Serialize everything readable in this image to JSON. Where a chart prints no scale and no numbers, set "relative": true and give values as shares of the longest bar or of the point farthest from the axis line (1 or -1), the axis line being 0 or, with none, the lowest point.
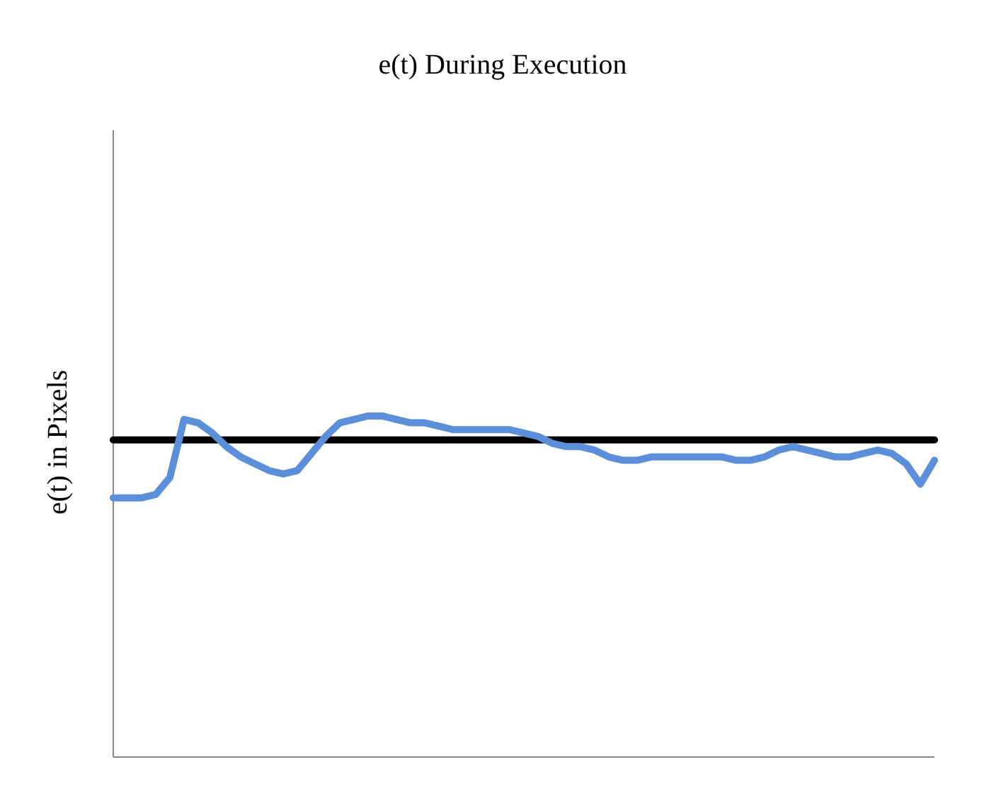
{
  "chart_data": {
    "type": "line",
    "title": "e(t) During Execution",
    "ylabel": "e(t) in Pixels",
    "relative": true,
    "categories": [
      null,
      null,
      null,
      null,
      null,
      null,
      null,
      null,
      null,
      null,
      null,
      null,
      null,
      null,
      null,
      null,
      null,
      null,
      null,
      null,
      null,
      null,
      null,
      null,
      null,
      null,
      null,
      null,
      null,
      null,
      null,
      null,
      null,
      null,
      null,
      null,
      null,
      null,
      null,
      null,
      null,
      null,
      null,
      null,
      null,
      null,
      null,
      null,
      null,
      null,
      null,
      null,
      null,
      null,
      null,
      null,
      null,
      null,
      null
    ],
    "series": [
      {
        "color": "#5b8fd9",
        "values": [
          0.76,
          0.76,
          0.76,
          0.77,
          0.82,
          0.99,
          0.98,
          0.95,
          0.91,
          0.88,
          0.86,
          0.84,
          0.83,
          0.84,
          0.89,
          0.94,
          0.98,
          0.99,
          1,
          1,
          0.99,
          0.98,
          0.98,
          0.97,
          0.96,
          0.96,
          0.96,
          0.96,
          0.96,
          0.95,
          0.94,
          0.92,
          0.91,
          0.91,
          0.9,
          0.88,
          0.87,
          0.87,
          0.88,
          0.88,
          0.88,
          0.88,
          0.88,
          0.88,
          0.87,
          0.87,
          0.88,
          0.9,
          0.91,
          0.9,
          0.89,
          0.88,
          0.88,
          0.89,
          0.9,
          0.89,
          0.86,
          0.8,
          0.87
        ]
      },
      {
        "color": "#000000",
        "values": [
          0.93,
          0.93,
          0.93,
          0.93,
          0.93,
          0.93,
          0.93,
          0.93,
          0.93,
          0.93,
          0.93,
          0.93,
          0.93,
          0.93,
          0.93,
          0.93,
          0.93,
          0.93,
          0.93,
          0.93,
          0.93,
          0.93,
          0.93,
          0.93,
          0.93,
          0.93,
          0.93,
          0.93,
          0.93,
          0.93,
          0.93,
          0.93,
          0.93,
          0.93,
          0.93,
          0.93,
          0.93,
          0.93,
          0.93,
          0.93,
          0.93,
          0.93,
          0.93,
          0.93,
          0.93,
          0.93,
          0.93,
          0.93,
          0.93,
          0.93,
          0.93,
          0.93,
          0.93,
          0.93,
          0.93,
          0.93,
          0.93,
          0.93,
          0.93
        ]
      }
    ]
  }
}
